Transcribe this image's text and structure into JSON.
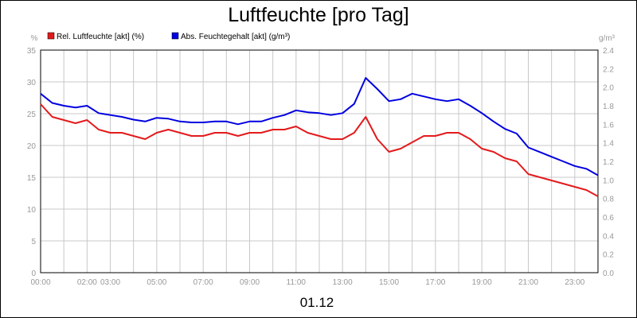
{
  "chart_data": {
    "type": "line",
    "title": "Luftfeuchte [pro Tag]",
    "date_label": "01.12",
    "x_tick_labels": [
      "00:00",
      "02:00",
      "03:00",
      "05:00",
      "07:00",
      "09:00",
      "11:00",
      "13:00",
      "15:00",
      "17:00",
      "19:00",
      "21:00",
      "23:00"
    ],
    "x_tick_hours": [
      0,
      2,
      3,
      5,
      7,
      9,
      11,
      13,
      15,
      17,
      19,
      21,
      23
    ],
    "xlim_hours": [
      0,
      24
    ],
    "y_left": {
      "unit": "%",
      "ticks": [
        "0",
        "5",
        "10",
        "15",
        "20",
        "25",
        "30",
        "35"
      ],
      "ylim": [
        0,
        35
      ]
    },
    "y_right": {
      "unit": "g/m³",
      "ticks": [
        "0.0",
        "0.2",
        "0.4",
        "0.6",
        "0.8",
        "1.0",
        "1.2",
        "1.4",
        "1.6",
        "1.8",
        "2.0",
        "2.2",
        "2.4"
      ],
      "ylim": [
        0,
        2.4
      ]
    },
    "grid": true,
    "legend_position": "top-left",
    "series": [
      {
        "name": "Rel. Luftfeuchte [akt] (%)",
        "axis": "left",
        "color": "#e31a1c",
        "x": [
          0,
          0.5,
          1,
          1.5,
          2,
          2.5,
          3,
          3.5,
          4,
          4.5,
          5,
          5.5,
          6,
          6.5,
          7,
          7.5,
          8,
          8.5,
          9,
          9.5,
          10,
          10.5,
          11,
          11.5,
          12,
          12.5,
          13,
          13.5,
          14,
          14.5,
          15,
          15.5,
          16,
          16.5,
          17,
          17.5,
          18,
          18.5,
          19,
          19.5,
          20,
          20.5,
          21,
          21.5,
          22,
          22.5,
          23,
          23.5,
          24
        ],
        "values": [
          26.5,
          24.5,
          24,
          23.5,
          24,
          22.5,
          22,
          22,
          21.5,
          21,
          22,
          22.5,
          22,
          21.5,
          21.5,
          22,
          22,
          21.5,
          22,
          22,
          22.5,
          22.5,
          23,
          22,
          21.5,
          21,
          21,
          22,
          24.5,
          21,
          19,
          19.5,
          20.5,
          21.5,
          21.5,
          22,
          22,
          21,
          19.5,
          19,
          18,
          17.5,
          15.5,
          15,
          14.5,
          14,
          13.5,
          13,
          12
        ]
      },
      {
        "name": "Abs. Feuchtegehalt [akt] (g/m³)",
        "axis": "right",
        "color": "#0000e0",
        "x": [
          0,
          0.5,
          1,
          1.5,
          2,
          2.5,
          3,
          3.5,
          4,
          4.5,
          5,
          5.5,
          6,
          6.5,
          7,
          7.5,
          8,
          8.5,
          9,
          9.5,
          10,
          10.5,
          11,
          11.5,
          12,
          12.5,
          13,
          13.5,
          14,
          14.5,
          15,
          15.5,
          16,
          16.5,
          17,
          17.5,
          18,
          18.5,
          19,
          19.5,
          20,
          20.5,
          21,
          21.5,
          22,
          22.5,
          23,
          23.5,
          24
        ],
        "values": [
          1.93,
          1.83,
          1.8,
          1.78,
          1.8,
          1.72,
          1.7,
          1.68,
          1.65,
          1.63,
          1.67,
          1.66,
          1.63,
          1.62,
          1.62,
          1.63,
          1.63,
          1.6,
          1.63,
          1.63,
          1.67,
          1.7,
          1.75,
          1.73,
          1.72,
          1.7,
          1.72,
          1.82,
          2.1,
          1.98,
          1.85,
          1.87,
          1.93,
          1.9,
          1.87,
          1.85,
          1.87,
          1.8,
          1.72,
          1.63,
          1.55,
          1.5,
          1.35,
          1.3,
          1.25,
          1.2,
          1.15,
          1.12,
          1.05
        ]
      }
    ]
  }
}
